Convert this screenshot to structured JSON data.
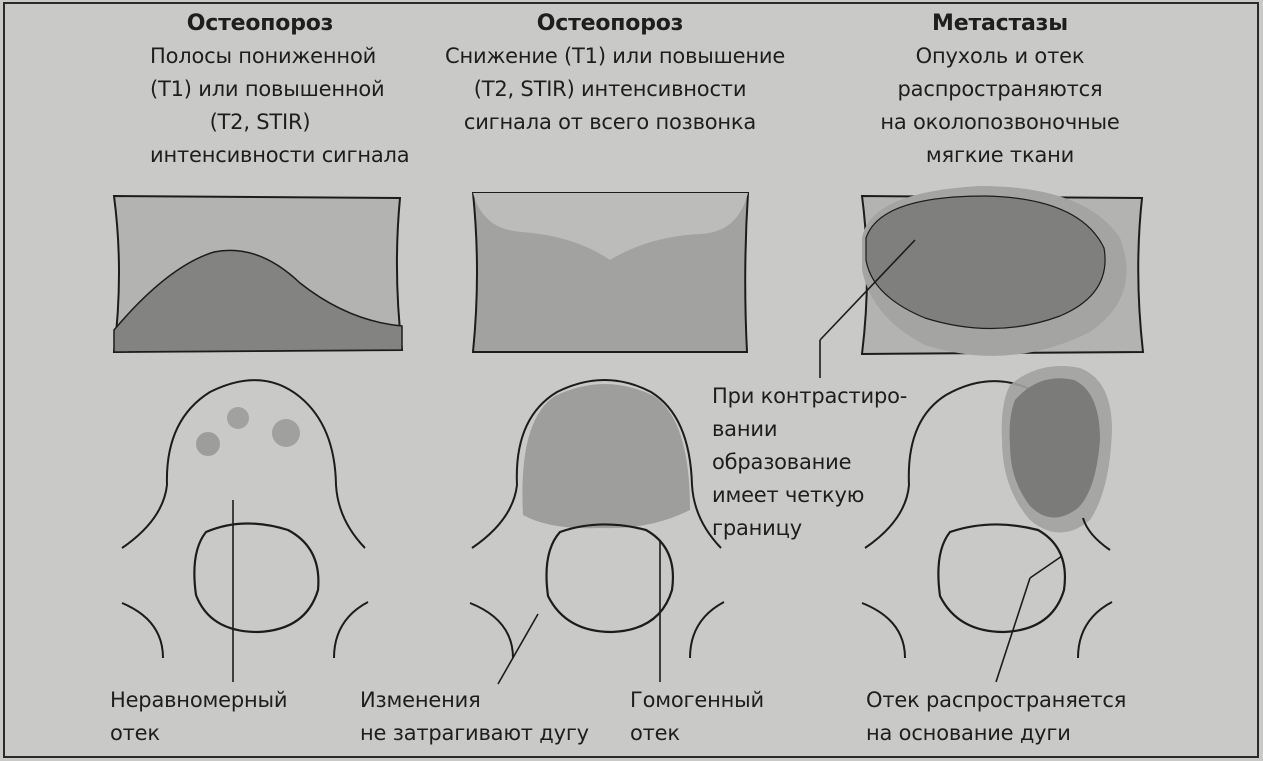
{
  "columns": [
    {
      "heading": "Остеопороз",
      "description": [
        "Полосы пониженной",
        "(T1) или повышенной",
        "(T2, STIR)",
        "интенсивности сигнала"
      ]
    },
    {
      "heading": "Остеопороз",
      "description": [
        "Снижение (T1) или повышение",
        "(T2, STIR) интенсивности",
        "сигнала от всего позвонка"
      ]
    },
    {
      "heading": "Метастазы",
      "description": [
        "Опухоль и отек",
        "распространяются",
        "на околопозвоночные",
        "мягкие ткани"
      ]
    }
  ],
  "callouts": {
    "contrast": [
      "При контрастиро-",
      "вании",
      "образование",
      "имеет четкую",
      "границу"
    ],
    "uneven_edema": [
      "Неравномерный",
      "отек"
    ],
    "arch_spared": [
      "Изменения",
      "не затрагивают дугу"
    ],
    "homogeneous": [
      "Гомогенный",
      "отек"
    ],
    "arch_involved": [
      "Отек распространяется",
      "на основание дуги"
    ]
  },
  "colors": {
    "page": "#c9c9c7",
    "ink": "#1c1c1c",
    "light_fill": "#b3b3b1",
    "dark_fill": "#828280",
    "mid_fill": "#979795"
  }
}
